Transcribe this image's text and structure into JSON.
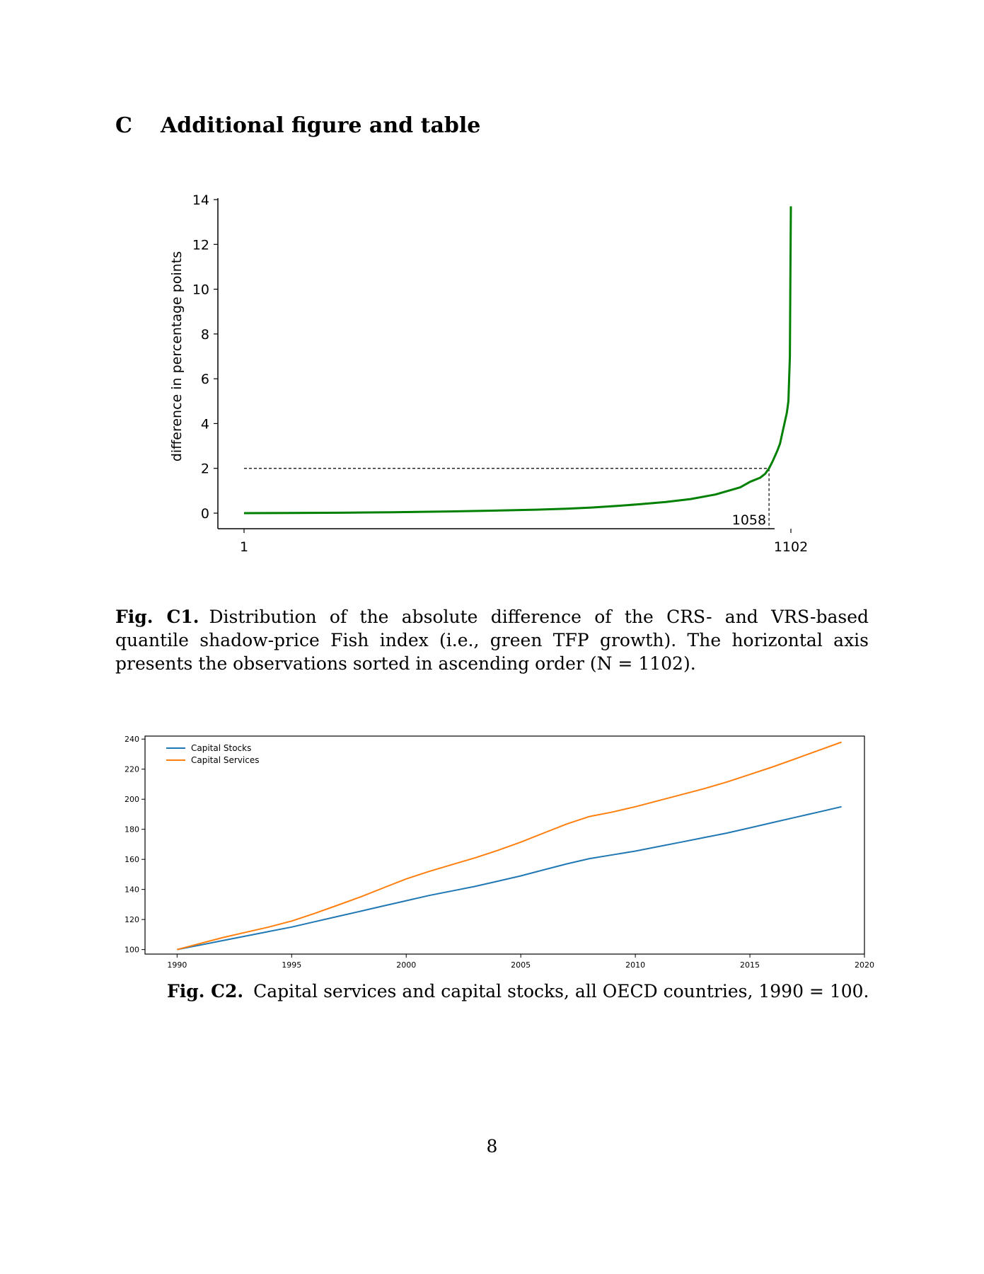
{
  "section": {
    "number": "C",
    "title": "Additional figure and table"
  },
  "figure1": {
    "caption_label": "Fig. C1.",
    "caption_text": "Distribution of the absolute difference of the CRS- and VRS-based quantile shadow-price Fish index (i.e., green TFP growth). The horizontal axis presents the observations sorted in ascending order (N = 1102).",
    "color": "#008000"
  },
  "figure2": {
    "caption_label": "Fig. C2.",
    "caption_text": "Capital services and capital stocks, all OECD countries, 1990 = 100."
  },
  "page_number": "8",
  "chart_data": [
    {
      "type": "line",
      "title": "",
      "xlabel": "",
      "ylabel": "difference in percentage points",
      "xlim": [
        1,
        1102
      ],
      "ylim": [
        0,
        14
      ],
      "x_ticks": [
        1,
        1102
      ],
      "y_ticks": [
        0,
        2,
        4,
        6,
        8,
        10,
        12,
        14
      ],
      "reference": {
        "x": 1058,
        "y": 2,
        "style": "dashed",
        "label": "1058"
      },
      "series": [
        {
          "color": "#008000",
          "x": [
            1,
            100,
            200,
            300,
            400,
            500,
            600,
            650,
            700,
            750,
            800,
            850,
            900,
            950,
            1000,
            1020,
            1040,
            1050,
            1058,
            1065,
            1070,
            1075,
            1080,
            1085,
            1090,
            1094,
            1097,
            1100,
            1101,
            1102
          ],
          "y": [
            0,
            0.01,
            0.02,
            0.04,
            0.07,
            0.11,
            0.16,
            0.2,
            0.25,
            0.32,
            0.4,
            0.5,
            0.63,
            0.83,
            1.15,
            1.4,
            1.58,
            1.75,
            2.0,
            2.3,
            2.55,
            2.8,
            3.1,
            3.6,
            4.1,
            4.5,
            5.0,
            7.0,
            10.5,
            13.7
          ]
        }
      ]
    },
    {
      "type": "line",
      "title": "",
      "xlabel": "",
      "ylabel": "",
      "xlim": [
        1988.6,
        2020
      ],
      "ylim": [
        97,
        242
      ],
      "x_ticks": [
        1990,
        1995,
        2000,
        2005,
        2010,
        2015,
        2020
      ],
      "y_ticks": [
        100,
        120,
        140,
        160,
        180,
        200,
        220,
        240
      ],
      "legend": "top-left",
      "x": [
        1990,
        1991,
        1992,
        1993,
        1994,
        1995,
        1996,
        1997,
        1998,
        1999,
        2000,
        2001,
        2002,
        2003,
        2004,
        2005,
        2006,
        2007,
        2008,
        2009,
        2010,
        2011,
        2012,
        2013,
        2014,
        2015,
        2016,
        2017,
        2018,
        2019
      ],
      "series": [
        {
          "name": "Capital Stocks",
          "color": "#1f77b4",
          "values": [
            100,
            103,
            106,
            109,
            112,
            115,
            118.5,
            122,
            125.5,
            129,
            132.5,
            136,
            139,
            142,
            145.5,
            149,
            153,
            157,
            160.5,
            163,
            165.5,
            168.5,
            171.5,
            174.5,
            177.5,
            181,
            184.5,
            188,
            191.5,
            195
          ]
        },
        {
          "name": "Capital Services",
          "color": "#ff7f0e",
          "values": [
            100,
            104,
            108,
            111.5,
            115,
            119,
            124,
            129.5,
            135,
            141,
            147,
            152,
            156.5,
            161,
            166,
            171.5,
            177.5,
            183.5,
            188.5,
            191.5,
            195,
            199,
            203,
            207,
            211.5,
            216.5,
            221.5,
            227,
            232.5,
            238
          ]
        }
      ]
    }
  ]
}
